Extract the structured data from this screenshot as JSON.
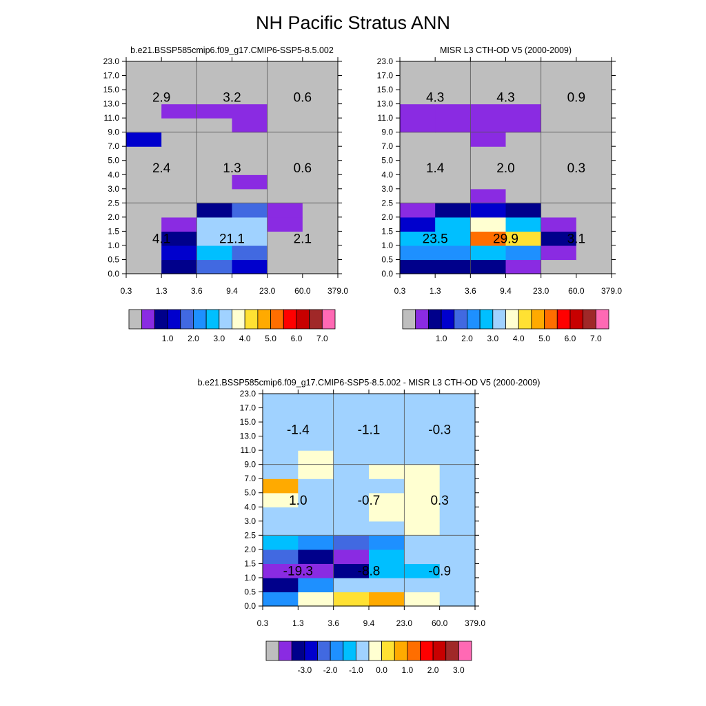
{
  "title": "NH Pacific Stratus ANN",
  "colors": {
    "palette": [
      "#bebebe",
      "#8a2be2",
      "#00008b",
      "#0000cd",
      "#4169e1",
      "#1e90ff",
      "#00bfff",
      "#a0d2ff",
      "#ffffd1",
      "#ffe133",
      "#ffaa00",
      "#ff6e00",
      "#ff0000",
      "#c80000",
      "#a02828",
      "#ff69b4"
    ],
    "grid_line": "#555555"
  },
  "chart_data": [
    {
      "type": "heatmap",
      "title": "b.e21.BSSP585cmip6.f09_g17.CMIP6-SSP5-8.5.002",
      "x_ticks": [
        "0.3",
        "1.3",
        "3.6",
        "9.4",
        "23.0",
        "60.0",
        "379.0"
      ],
      "y_ticks": [
        "0.0",
        "0.5",
        "1.0",
        "1.5",
        "2.0",
        "2.5",
        "3.0",
        "4.0",
        "5.0",
        "7.0",
        "9.0",
        "11.0",
        "13.0",
        "15.0",
        "17.0",
        "23.0"
      ],
      "cell_colors": [
        [
          0,
          2,
          4,
          3,
          0,
          0
        ],
        [
          0,
          3,
          6,
          4,
          0,
          0
        ],
        [
          0,
          2,
          7,
          7,
          0,
          0
        ],
        [
          0,
          1,
          7,
          7,
          1,
          0
        ],
        [
          0,
          0,
          2,
          4,
          1,
          0
        ],
        [
          0,
          0,
          0,
          0,
          0,
          0
        ],
        [
          0,
          0,
          0,
          1,
          0,
          0
        ],
        [
          0,
          0,
          0,
          0,
          0,
          0
        ],
        [
          0,
          0,
          0,
          0,
          0,
          0
        ],
        [
          3,
          0,
          0,
          0,
          0,
          0
        ],
        [
          0,
          0,
          0,
          1,
          0,
          0
        ],
        [
          0,
          1,
          1,
          1,
          0,
          0
        ],
        [
          0,
          0,
          0,
          0,
          0,
          0
        ],
        [
          0,
          0,
          0,
          0,
          0,
          0
        ],
        [
          0,
          0,
          0,
          0,
          0,
          0
        ]
      ],
      "annotations": [
        [
          "4.1",
          "21.1",
          "2.1"
        ],
        [
          "2.4",
          "1.3",
          "0.6"
        ],
        [
          "2.9",
          "3.2",
          "0.6"
        ]
      ],
      "colorbar_labels": [
        "1.0",
        "2.0",
        "3.0",
        "4.0",
        "5.0",
        "6.0",
        "7.0"
      ]
    },
    {
      "type": "heatmap",
      "title": "MISR L3 CTH-OD V5 (2000-2009)",
      "x_ticks": [
        "0.3",
        "1.3",
        "3.6",
        "9.4",
        "23.0",
        "60.0",
        "379.0"
      ],
      "y_ticks": [
        "0.0",
        "0.5",
        "1.0",
        "1.5",
        "2.0",
        "2.5",
        "3.0",
        "4.0",
        "5.0",
        "7.0",
        "9.0",
        "11.0",
        "13.0",
        "15.0",
        "17.0",
        "23.0"
      ],
      "cell_colors": [
        [
          2,
          2,
          2,
          1,
          0,
          0
        ],
        [
          5,
          5,
          6,
          5,
          1,
          0
        ],
        [
          6,
          6,
          11,
          9,
          2,
          0
        ],
        [
          3,
          6,
          8,
          6,
          1,
          0
        ],
        [
          1,
          2,
          3,
          2,
          0,
          0
        ],
        [
          0,
          0,
          1,
          0,
          0,
          0
        ],
        [
          0,
          0,
          0,
          0,
          0,
          0
        ],
        [
          0,
          0,
          0,
          0,
          0,
          0
        ],
        [
          0,
          0,
          0,
          0,
          0,
          0
        ],
        [
          0,
          0,
          1,
          0,
          0,
          0
        ],
        [
          1,
          1,
          1,
          1,
          0,
          0
        ],
        [
          1,
          1,
          1,
          1,
          0,
          0
        ],
        [
          0,
          0,
          0,
          0,
          0,
          0
        ],
        [
          0,
          0,
          0,
          0,
          0,
          0
        ],
        [
          0,
          0,
          0,
          0,
          0,
          0
        ]
      ],
      "annotations": [
        [
          "23.5",
          "29.9",
          "3.1"
        ],
        [
          "1.4",
          "2.0",
          "0.3"
        ],
        [
          "4.3",
          "4.3",
          "0.9"
        ]
      ],
      "colorbar_labels": [
        "1.0",
        "2.0",
        "3.0",
        "4.0",
        "5.0",
        "6.0",
        "7.0"
      ]
    },
    {
      "type": "heatmap",
      "title": "b.e21.BSSP585cmip6.f09_g17.CMIP6-SSP5-8.5.002 - MISR L3 CTH-OD V5 (2000-2009)",
      "x_ticks": [
        "0.3",
        "1.3",
        "3.6",
        "9.4",
        "23.0",
        "60.0",
        "379.0"
      ],
      "y_ticks": [
        "0.0",
        "0.5",
        "1.0",
        "1.5",
        "2.0",
        "2.5",
        "3.0",
        "4.0",
        "5.0",
        "7.0",
        "9.0",
        "11.0",
        "13.0",
        "15.0",
        "17.0",
        "23.0"
      ],
      "cell_colors": [
        [
          5,
          8,
          9,
          10,
          8,
          7
        ],
        [
          2,
          5,
          7,
          7,
          7,
          7
        ],
        [
          1,
          1,
          2,
          6,
          6,
          7
        ],
        [
          4,
          2,
          1,
          6,
          7,
          7
        ],
        [
          6,
          5,
          4,
          5,
          7,
          7
        ],
        [
          7,
          7,
          7,
          7,
          8,
          7
        ],
        [
          7,
          7,
          7,
          8,
          8,
          7
        ],
        [
          8,
          7,
          7,
          8,
          8,
          7
        ],
        [
          10,
          7,
          7,
          7,
          8,
          7
        ],
        [
          7,
          8,
          7,
          8,
          8,
          7
        ],
        [
          7,
          8,
          7,
          7,
          7,
          7
        ],
        [
          7,
          7,
          7,
          7,
          7,
          7
        ],
        [
          7,
          7,
          7,
          7,
          7,
          7
        ],
        [
          7,
          7,
          7,
          7,
          7,
          7
        ],
        [
          7,
          7,
          7,
          7,
          7,
          7
        ]
      ],
      "annotations": [
        [
          "-19.3",
          "-8.8",
          "-0.9"
        ],
        [
          "1.0",
          "-0.7",
          "0.3"
        ],
        [
          "-1.4",
          "-1.1",
          "-0.3"
        ]
      ],
      "colorbar_labels": [
        "-3.0",
        "-2.0",
        "-1.0",
        "0.0",
        "1.0",
        "2.0",
        "3.0"
      ]
    }
  ]
}
